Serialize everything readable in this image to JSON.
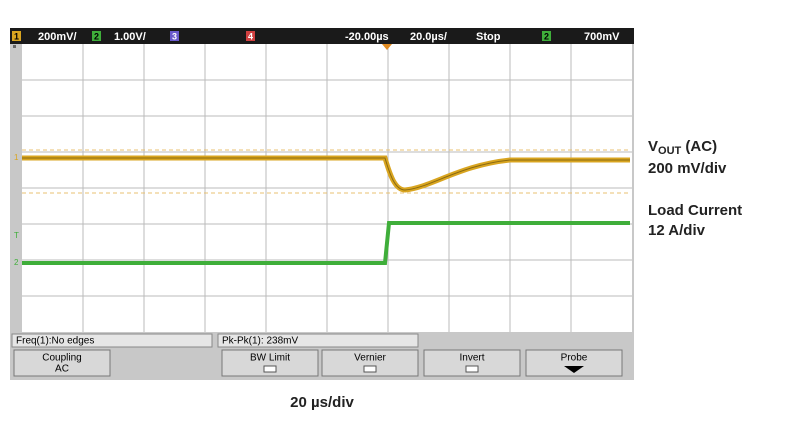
{
  "top_bar": {
    "ch1_number": "1",
    "ch1_scale": "200mV/",
    "ch2_number": "2",
    "ch2_scale": "1.00V/",
    "ch3_number": "3",
    "ch4_number": "4",
    "delay": "-20.00µs",
    "timebase": "20.0µs/",
    "run_state": "Stop",
    "trigger_channel": "2",
    "trigger_level": "700mV"
  },
  "status_bar": {
    "measurement_1": "Freq(1):No edges",
    "measurement_2": "Pk-Pk(1): 238mV"
  },
  "softkeys": [
    {
      "label": "Coupling",
      "value": "AC"
    },
    {
      "label": "BW Limit"
    },
    {
      "label": "Vernier"
    },
    {
      "label": "Invert"
    },
    {
      "label": "Probe"
    }
  ],
  "annotations": {
    "vout_main": "V",
    "vout_sub": "OUT",
    "vout_rest": " (AC)",
    "vout_scale": "200 mV/div",
    "current_label": "Load Current",
    "current_scale": "12 A/div",
    "time_scale": "20 µs/div"
  }
}
